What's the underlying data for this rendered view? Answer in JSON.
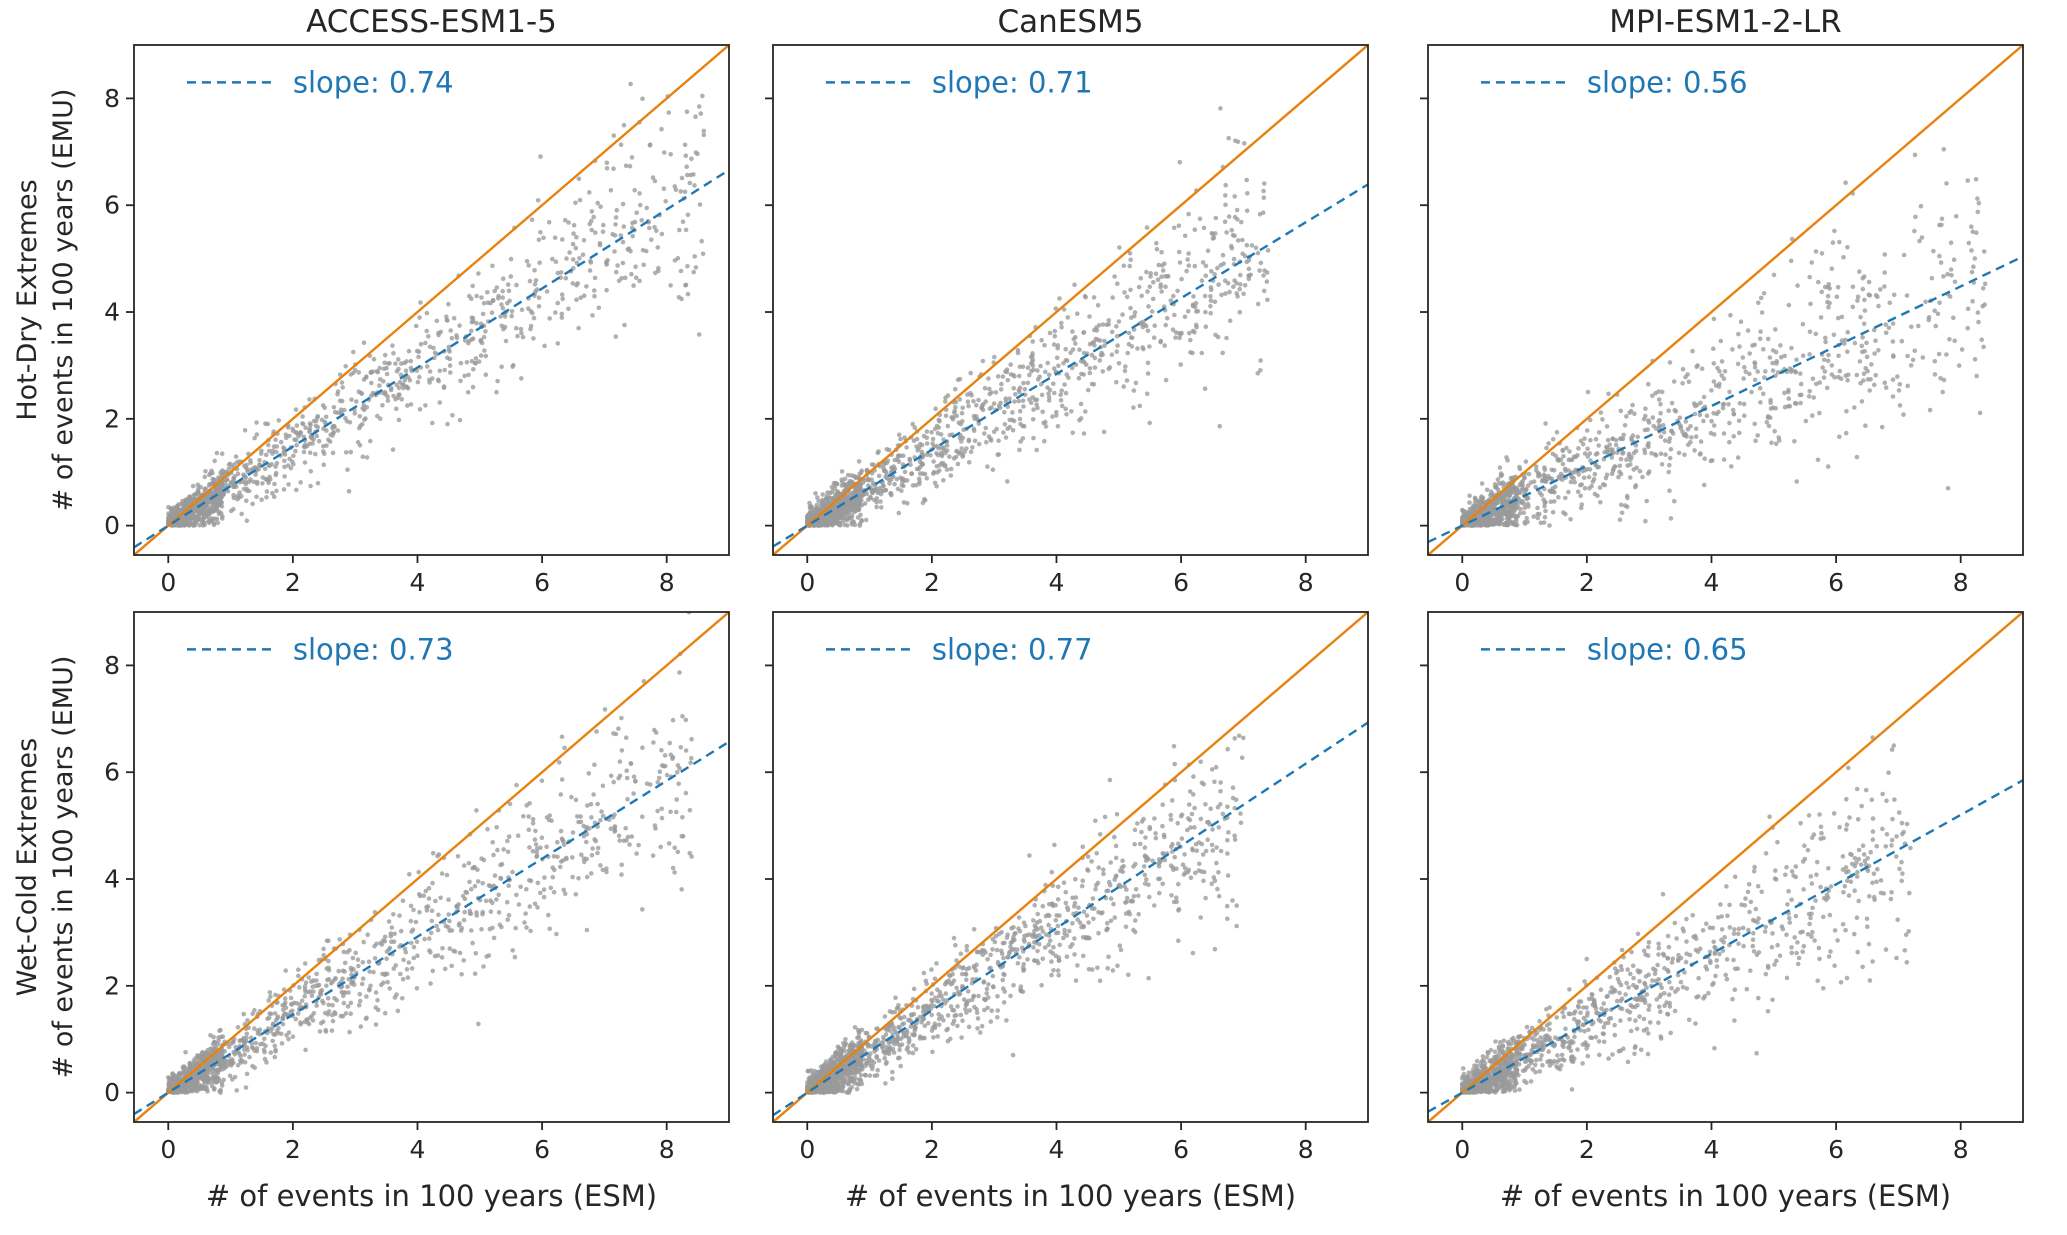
{
  "figure": {
    "background": "#ffffff",
    "col_titles": [
      "ACCESS-ESM1-5",
      "CanESM5",
      "MPI-ESM1-2-LR"
    ],
    "row_labels": [
      {
        "line1": "Hot-Dry Extremes",
        "line2": "# of events in 100 years (EMU)"
      },
      {
        "line1": "Wet-Cold Extremes",
        "line2": "# of events in 100 years (EMU)"
      }
    ],
    "xlabel": "# of events in 100 years (ESM)",
    "colors": {
      "identity_line": "#e8820e",
      "fit_line": "#1f77b4",
      "slope_text": "#1f77b4",
      "points": "#9a9a9a",
      "axis": "#262626"
    }
  },
  "chart_data": [
    {
      "type": "scatter",
      "row": "Hot-Dry Extremes",
      "model": "ACCESS-ESM1-5",
      "slope": 0.74,
      "slope_label": "slope: 0.74",
      "xlim": [
        -0.55,
        9.0
      ],
      "ylim": [
        -0.55,
        9.0
      ],
      "xticks": [
        0,
        2,
        4,
        6,
        8
      ],
      "yticks": [
        0,
        2,
        4,
        6,
        8
      ],
      "identity_line": {
        "slope": 1,
        "intercept": 0
      },
      "fit_line": {
        "slope": 0.74,
        "intercept": 0,
        "style": "dashed"
      },
      "points": {
        "n": 1400,
        "seed": 11,
        "x_max": 8.6,
        "noise_base": 0.14,
        "noise_slope": 0.11
      }
    },
    {
      "type": "scatter",
      "row": "Hot-Dry Extremes",
      "model": "CanESM5",
      "slope": 0.71,
      "slope_label": "slope: 0.71",
      "xlim": [
        -0.55,
        9.0
      ],
      "ylim": [
        -0.55,
        9.0
      ],
      "xticks": [
        0,
        2,
        4,
        6,
        8
      ],
      "yticks": [
        0,
        2,
        4,
        6,
        8
      ],
      "identity_line": {
        "slope": 1,
        "intercept": 0
      },
      "fit_line": {
        "slope": 0.71,
        "intercept": 0,
        "style": "dashed"
      },
      "points": {
        "n": 1500,
        "seed": 23,
        "x_max": 7.4,
        "noise_base": 0.14,
        "noise_slope": 0.12
      }
    },
    {
      "type": "scatter",
      "row": "Hot-Dry Extremes",
      "model": "MPI-ESM1-2-LR",
      "slope": 0.56,
      "slope_label": "slope: 0.56",
      "xlim": [
        -0.55,
        9.0
      ],
      "ylim": [
        -0.55,
        9.0
      ],
      "xticks": [
        0,
        2,
        4,
        6,
        8
      ],
      "yticks": [
        0,
        2,
        4,
        6,
        8
      ],
      "identity_line": {
        "slope": 1,
        "intercept": 0
      },
      "fit_line": {
        "slope": 0.56,
        "intercept": 0,
        "style": "dashed"
      },
      "points": {
        "n": 1400,
        "seed": 37,
        "x_max": 8.4,
        "noise_base": 0.16,
        "noise_slope": 0.14
      }
    },
    {
      "type": "scatter",
      "row": "Wet-Cold Extremes",
      "model": "ACCESS-ESM1-5",
      "slope": 0.73,
      "slope_label": "slope: 0.73",
      "xlim": [
        -0.55,
        9.0
      ],
      "ylim": [
        -0.55,
        9.0
      ],
      "xticks": [
        0,
        2,
        4,
        6,
        8
      ],
      "yticks": [
        0,
        2,
        4,
        6,
        8
      ],
      "identity_line": {
        "slope": 1,
        "intercept": 0
      },
      "fit_line": {
        "slope": 0.73,
        "intercept": 0,
        "style": "dashed"
      },
      "points": {
        "n": 1400,
        "seed": 53,
        "x_max": 8.4,
        "noise_base": 0.14,
        "noise_slope": 0.11
      }
    },
    {
      "type": "scatter",
      "row": "Wet-Cold Extremes",
      "model": "CanESM5",
      "slope": 0.77,
      "slope_label": "slope: 0.77",
      "xlim": [
        -0.55,
        9.0
      ],
      "ylim": [
        -0.55,
        9.0
      ],
      "xticks": [
        0,
        2,
        4,
        6,
        8
      ],
      "yticks": [
        0,
        2,
        4,
        6,
        8
      ],
      "identity_line": {
        "slope": 1,
        "intercept": 0
      },
      "fit_line": {
        "slope": 0.77,
        "intercept": 0,
        "style": "dashed"
      },
      "points": {
        "n": 1500,
        "seed": 67,
        "x_max": 7.0,
        "noise_base": 0.14,
        "noise_slope": 0.11
      }
    },
    {
      "type": "scatter",
      "row": "Wet-Cold Extremes",
      "model": "MPI-ESM1-2-LR",
      "slope": 0.65,
      "slope_label": "slope: 0.65",
      "xlim": [
        -0.55,
        9.0
      ],
      "ylim": [
        -0.55,
        9.0
      ],
      "xticks": [
        0,
        2,
        4,
        6,
        8
      ],
      "yticks": [
        0,
        2,
        4,
        6,
        8
      ],
      "identity_line": {
        "slope": 1,
        "intercept": 0
      },
      "fit_line": {
        "slope": 0.65,
        "intercept": 0,
        "style": "dashed"
      },
      "points": {
        "n": 1300,
        "seed": 83,
        "x_max": 7.2,
        "noise_base": 0.15,
        "noise_slope": 0.13
      }
    }
  ]
}
